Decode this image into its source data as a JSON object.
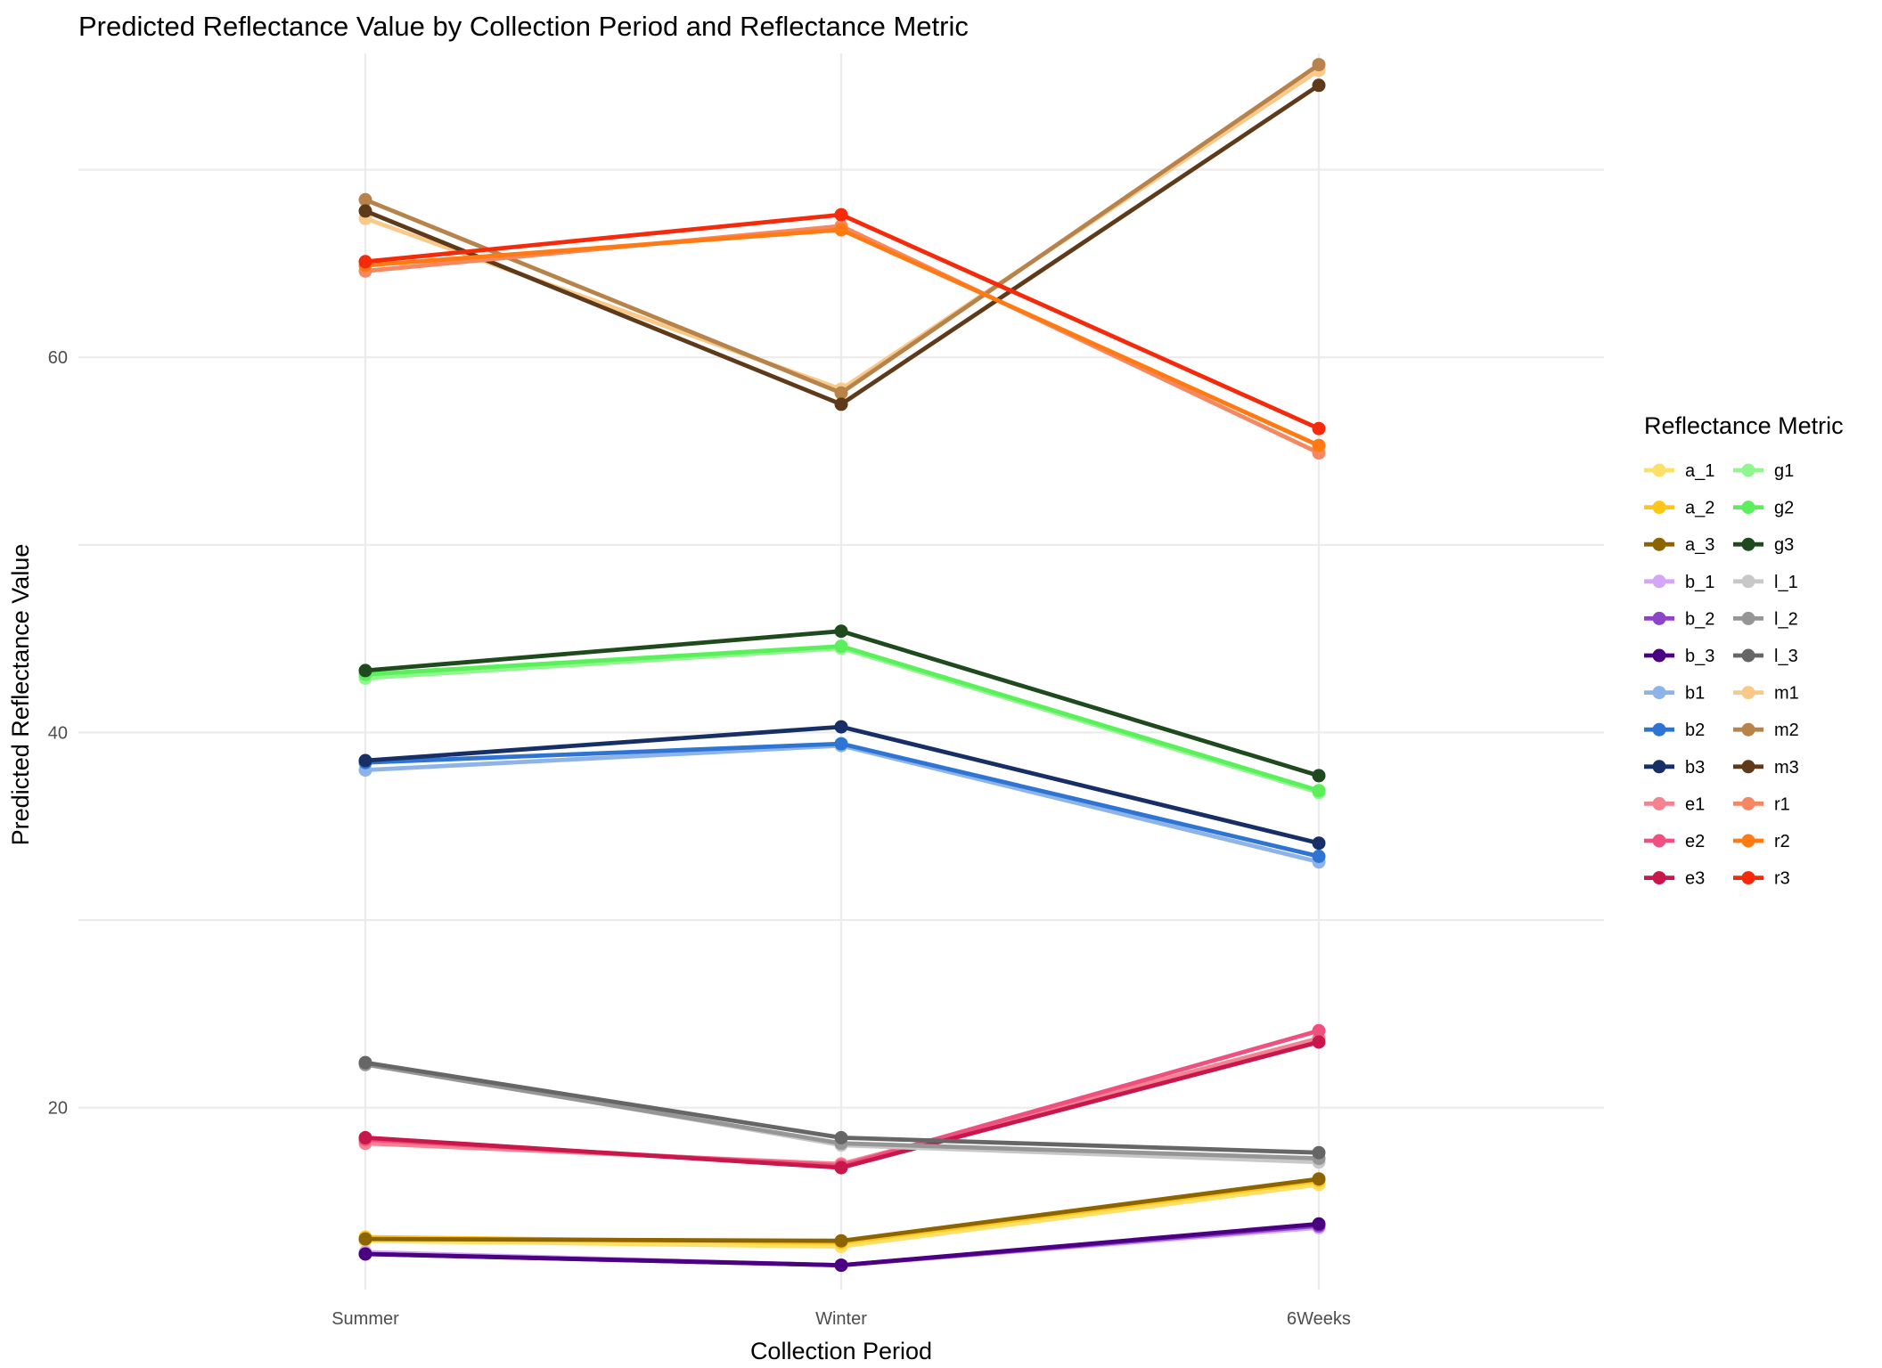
{
  "chart_data": {
    "type": "line",
    "title": "Predicted Reflectance Value by Collection Period and Reflectance Metric",
    "xlabel": "Collection Period",
    "ylabel": "Predicted Reflectance Value",
    "categories": [
      "Summer",
      "Winter",
      "6Weeks"
    ],
    "ylim": [
      10.3,
      76.2
    ],
    "yticks": [
      20,
      40,
      60
    ],
    "grid": true,
    "legend": {
      "title": "Reflectance Metric",
      "position": "right",
      "columns": 2
    },
    "series": [
      {
        "name": "a_1",
        "color": "#FFE066",
        "values": [
          12.9,
          12.6,
          15.9
        ]
      },
      {
        "name": "a_2",
        "color": "#FFC61A",
        "values": [
          13.1,
          12.8,
          16.1
        ]
      },
      {
        "name": "a_3",
        "color": "#8C6400",
        "values": [
          13.0,
          12.9,
          16.2
        ]
      },
      {
        "name": "b_1",
        "color": "#D4A6F7",
        "values": [
          12.3,
          11.6,
          13.6
        ]
      },
      {
        "name": "b_2",
        "color": "#8E44C9",
        "values": [
          12.2,
          11.6,
          13.7
        ]
      },
      {
        "name": "b_3",
        "color": "#4B0082",
        "values": [
          12.2,
          11.6,
          13.8
        ]
      },
      {
        "name": "b1",
        "color": "#8DB3E8",
        "values": [
          38.0,
          39.3,
          33.1
        ]
      },
      {
        "name": "b2",
        "color": "#2E74D2",
        "values": [
          38.4,
          39.4,
          33.4
        ]
      },
      {
        "name": "b3",
        "color": "#172F66",
        "values": [
          38.5,
          40.3,
          34.1
        ]
      },
      {
        "name": "e1",
        "color": "#F48291",
        "values": [
          18.1,
          17.0,
          23.7
        ]
      },
      {
        "name": "e2",
        "color": "#F0507F",
        "values": [
          18.3,
          16.9,
          24.1
        ]
      },
      {
        "name": "e3",
        "color": "#C8174B",
        "values": [
          18.4,
          16.8,
          23.5
        ]
      },
      {
        "name": "g1",
        "color": "#8EF78E",
        "values": [
          42.9,
          44.5,
          36.8
        ]
      },
      {
        "name": "g2",
        "color": "#5BF05B",
        "values": [
          43.1,
          44.6,
          36.9
        ]
      },
      {
        "name": "g3",
        "color": "#1E4A1E",
        "values": [
          43.3,
          45.4,
          37.7
        ]
      },
      {
        "name": "l_1",
        "color": "#C8C8C8",
        "values": [
          22.4,
          18.0,
          17.1
        ]
      },
      {
        "name": "l_2",
        "color": "#969696",
        "values": [
          22.3,
          18.1,
          17.3
        ]
      },
      {
        "name": "l_3",
        "color": "#666666",
        "values": [
          22.4,
          18.4,
          17.6
        ]
      },
      {
        "name": "m1",
        "color": "#F9C98A",
        "values": [
          67.4,
          58.3,
          75.3
        ]
      },
      {
        "name": "m2",
        "color": "#B8834A",
        "values": [
          68.4,
          58.1,
          75.6
        ]
      },
      {
        "name": "m3",
        "color": "#5E3A1A",
        "values": [
          67.8,
          57.5,
          74.5
        ]
      },
      {
        "name": "r1",
        "color": "#F58862",
        "values": [
          64.6,
          67.0,
          54.9
        ]
      },
      {
        "name": "r2",
        "color": "#FF7A12",
        "values": [
          64.9,
          66.8,
          55.3
        ]
      },
      {
        "name": "r3",
        "color": "#F52A0A",
        "values": [
          65.1,
          67.6,
          56.2
        ]
      }
    ]
  }
}
